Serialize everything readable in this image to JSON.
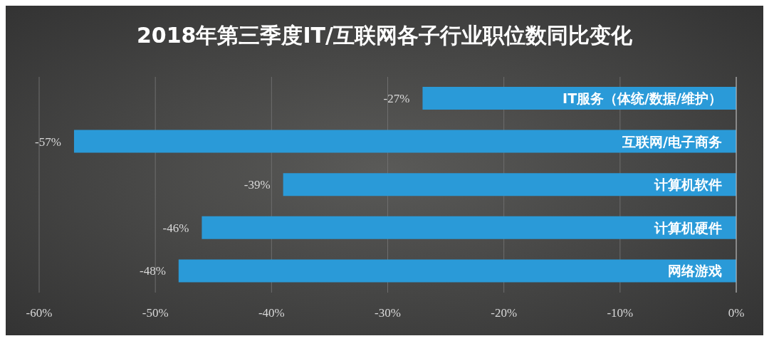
{
  "chart_data": {
    "type": "bar",
    "orientation": "horizontal",
    "title": "2018年第三季度IT/互联网各子行业职位数同比变化",
    "categories": [
      "IT服务（体统/数据/维护）",
      "互联网/电子商务",
      "计算机软件",
      "计算机硬件",
      "网络游戏"
    ],
    "values": [
      -27,
      -57,
      -39,
      -46,
      -48
    ],
    "value_labels": [
      "-27%",
      "-57%",
      "-39%",
      "-46%",
      "-48%"
    ],
    "color": "#2a9ad8",
    "xlim": [
      -60,
      0
    ],
    "xticks": [
      {
        "value": -60,
        "label": "-60%"
      },
      {
        "value": -50,
        "label": "-50%"
      },
      {
        "value": -40,
        "label": "-40%"
      },
      {
        "value": -30,
        "label": "-30%"
      },
      {
        "value": -20,
        "label": "-20%"
      },
      {
        "value": -10,
        "label": "-10%"
      },
      {
        "value": 0,
        "label": "0%"
      }
    ],
    "grid": "x",
    "legend": false
  }
}
